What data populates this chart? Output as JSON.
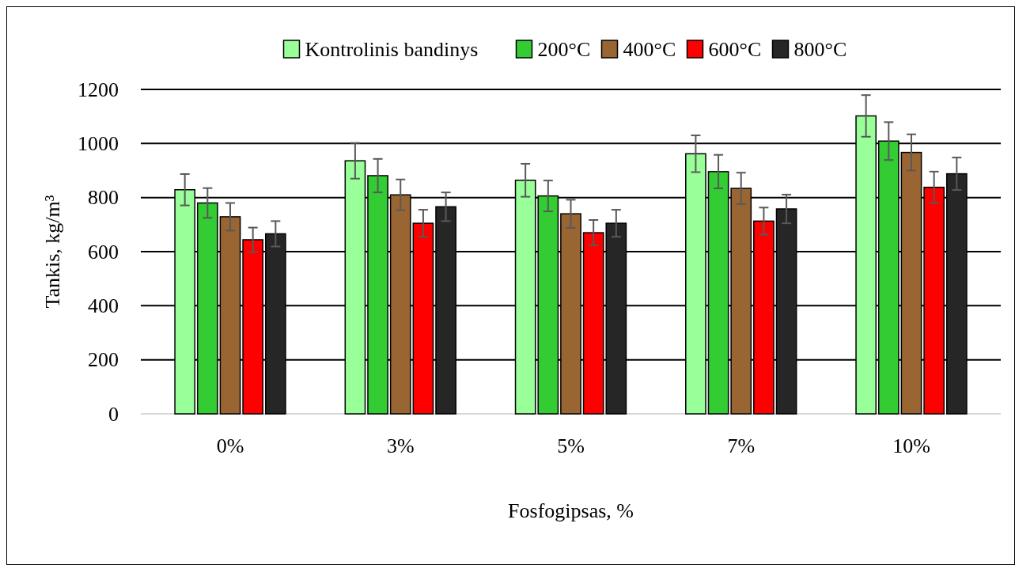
{
  "chart_data": {
    "type": "bar",
    "xlabel": "Fosfogipsas, %",
    "ylabel": "Tankis, kg/m³",
    "categories": [
      "0%",
      "3%",
      "5%",
      "7%",
      "10%"
    ],
    "series": [
      {
        "name": "Kontrolinis bandinys",
        "color": "#99ff99",
        "values": [
          829,
          936,
          864,
          962,
          1102
        ],
        "errors": [
          58,
          66,
          61,
          68,
          77
        ]
      },
      {
        "name": "200°C",
        "color": "#33cc33",
        "values": [
          780,
          881,
          806,
          896,
          1009
        ],
        "errors": [
          55,
          62,
          57,
          62,
          70
        ]
      },
      {
        "name": "400°C",
        "color": "#996633",
        "values": [
          729,
          810,
          740,
          834,
          967
        ],
        "errors": [
          51,
          57,
          52,
          58,
          67
        ]
      },
      {
        "name": "600°C",
        "color": "#ff0000",
        "values": [
          644,
          705,
          670,
          713,
          838
        ],
        "errors": [
          45,
          50,
          47,
          50,
          58
        ]
      },
      {
        "name": "800°C",
        "color": "#262626",
        "values": [
          666,
          766,
          705,
          758,
          888
        ],
        "errors": [
          47,
          53,
          50,
          53,
          60
        ]
      }
    ],
    "ylim": [
      0,
      1200
    ],
    "yticks": [
      0,
      200,
      400,
      600,
      800,
      1000,
      1200
    ],
    "grid": "y",
    "legend": "top"
  }
}
